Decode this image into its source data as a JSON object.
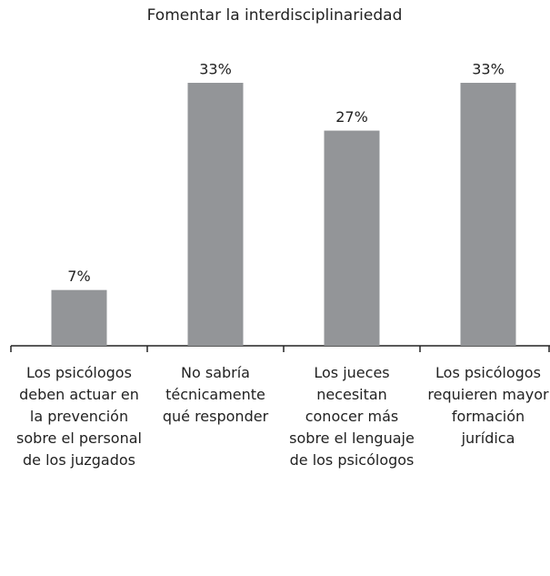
{
  "chart_data": {
    "type": "bar",
    "title": "Fomentar la interdisciplinariedad",
    "categories": [
      "Los psicólogos deben actuar en la prevención sobre el personal de los juzgados",
      "No sabría técnicamente qué responder",
      "Los jueces necesitan conocer más sobre el lenguaje de los psicólogos",
      "Los psicólogos requieren mayor formación jurídica"
    ],
    "values": [
      7,
      33,
      27,
      33
    ],
    "value_labels": [
      "7%",
      "33%",
      "27%",
      "33%"
    ],
    "color": "#939598",
    "ylim": [
      0,
      35
    ]
  }
}
